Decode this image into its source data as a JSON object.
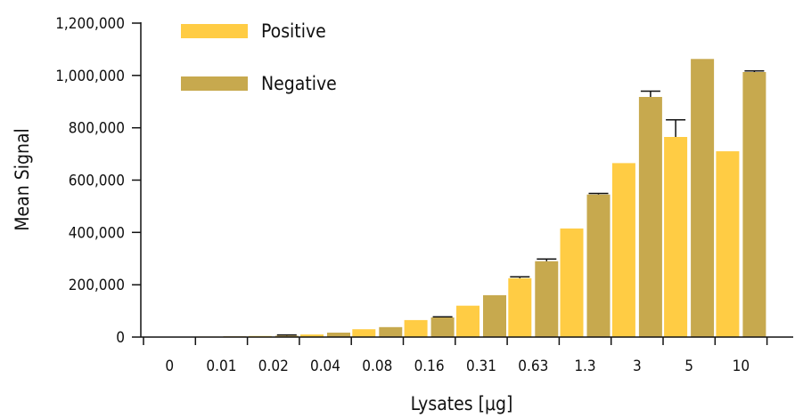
{
  "chart_data": {
    "type": "bar",
    "title": "",
    "xlabel": "Lysates [μg]",
    "ylabel": "Mean Signal",
    "ylim": [
      0,
      1200000
    ],
    "yticks": [
      0,
      200000,
      400000,
      600000,
      800000,
      1000000,
      1200000
    ],
    "ytick_labels": [
      "0",
      "200,000",
      "400,000",
      "600,000",
      "800,000",
      "1,000,000",
      "1,200,000"
    ],
    "categories": [
      "0",
      "0.01",
      "0.02",
      "0.04",
      "0.08",
      "0.16",
      "0.31",
      "0.63",
      "1.3",
      "3",
      "5",
      "10"
    ],
    "legend_position": "top-left",
    "grid": false,
    "series": [
      {
        "name": "Positive",
        "color": "#FFCC44",
        "values": [
          0,
          2000,
          4000,
          10000,
          30000,
          65000,
          120000,
          225000,
          415000,
          665000,
          765000,
          710000
        ],
        "errors": [
          0,
          0,
          0,
          0,
          0,
          0,
          0,
          5000,
          0,
          0,
          65000,
          0
        ]
      },
      {
        "name": "Negative",
        "color": "#C7A94E",
        "values": [
          0,
          3000,
          5000,
          17000,
          38000,
          75000,
          160000,
          290000,
          545000,
          918000,
          1063000,
          1013000
        ],
        "errors": [
          0,
          0,
          3000,
          0,
          0,
          2000,
          0,
          8000,
          4000,
          22000,
          0,
          4000
        ]
      }
    ]
  }
}
